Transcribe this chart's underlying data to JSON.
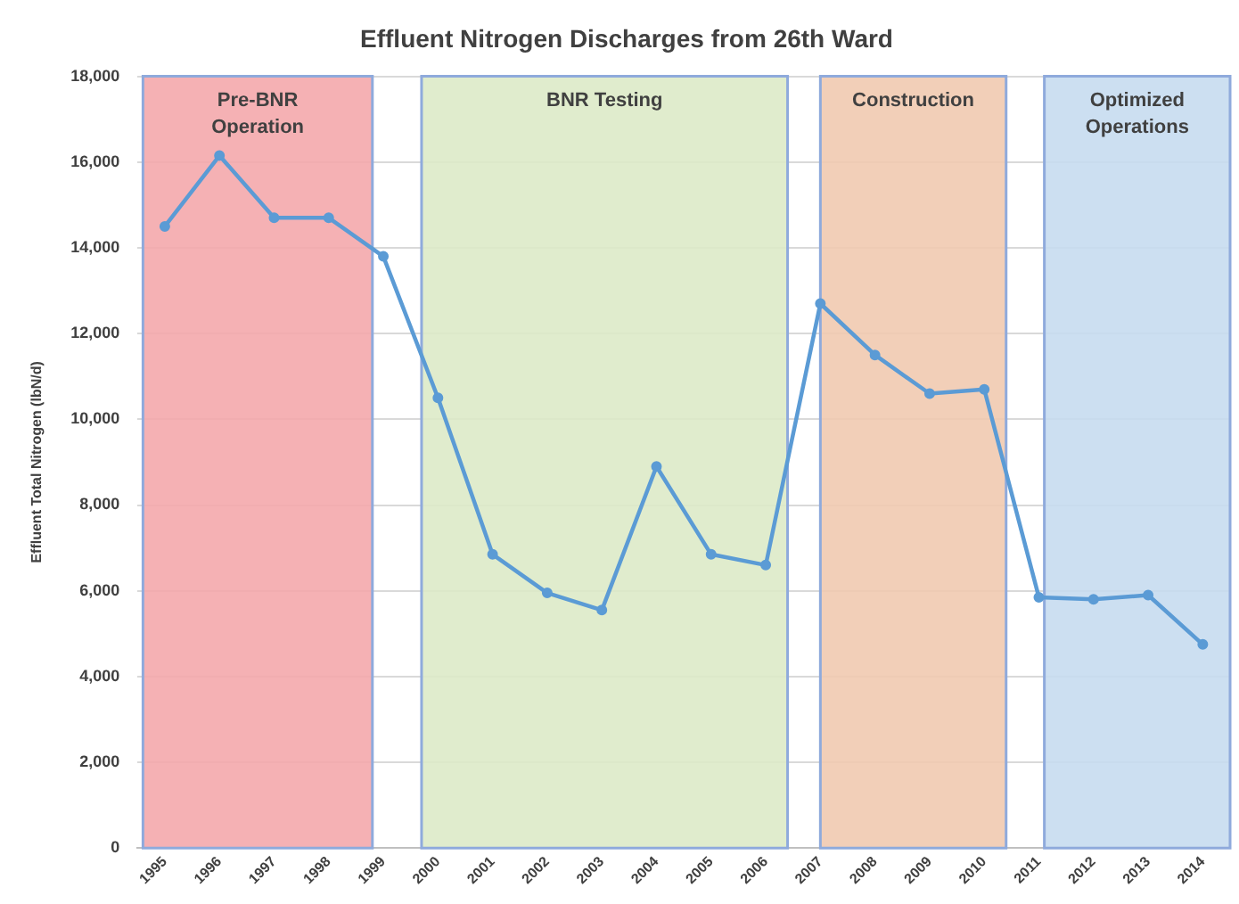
{
  "chart_data": {
    "type": "line",
    "title": "Effluent Nitrogen Discharges from 26th Ward",
    "ylabel": "Effluent Total Nitrogen (lbN/d)",
    "x": [
      1995,
      1996,
      1997,
      1998,
      1999,
      2000,
      2001,
      2002,
      2003,
      2004,
      2005,
      2006,
      2007,
      2008,
      2009,
      2010,
      2011,
      2012,
      2013,
      2014
    ],
    "values": [
      14500,
      16150,
      14700,
      14700,
      13800,
      10500,
      6850,
      5950,
      5550,
      8900,
      6850,
      6600,
      12700,
      11500,
      10600,
      10700,
      5850,
      5800,
      5900,
      4750
    ],
    "color": "#5b9bd5",
    "xlim": [
      1994.5,
      2014.5
    ],
    "xticks": [
      1995,
      1996,
      1997,
      1998,
      1999,
      2000,
      2001,
      2002,
      2003,
      2004,
      2005,
      2006,
      2007,
      2008,
      2009,
      2010,
      2011,
      2012,
      2013,
      2014
    ],
    "ylim": [
      0,
      18000
    ],
    "yticks": [
      0,
      {
        "value": 2000,
        "label": "2,000"
      },
      {
        "value": 4000,
        "label": "4,000"
      },
      {
        "value": 6000,
        "label": "6,000"
      },
      {
        "value": 8000,
        "label": "8,000"
      },
      {
        "value": 10000,
        "label": "10,000"
      },
      {
        "value": 12000,
        "label": "12,000"
      },
      {
        "value": 14000,
        "label": "14,000"
      },
      {
        "value": 16000,
        "label": "16,000"
      },
      {
        "value": 18000,
        "label": "18,000"
      }
    ],
    "grid": "y",
    "marker": "circle",
    "line_style": "solid",
    "bands": [
      {
        "axis": "x",
        "from": 1994.6,
        "to": 1998.8,
        "label": "Pre-BNR Operation",
        "color": "#f4a6aa"
      },
      {
        "axis": "x",
        "from": 1999.7,
        "to": 2006.4,
        "label": "BNR Testing",
        "color": "#dce9c6"
      },
      {
        "axis": "x",
        "from": 2007.0,
        "to": 2010.4,
        "label": "Construction",
        "color": "#f0c8ae"
      },
      {
        "axis": "x",
        "from": 2011.1,
        "to": 2014.5,
        "label": "Optimized Operations",
        "color": "#c5dbef"
      }
    ]
  }
}
